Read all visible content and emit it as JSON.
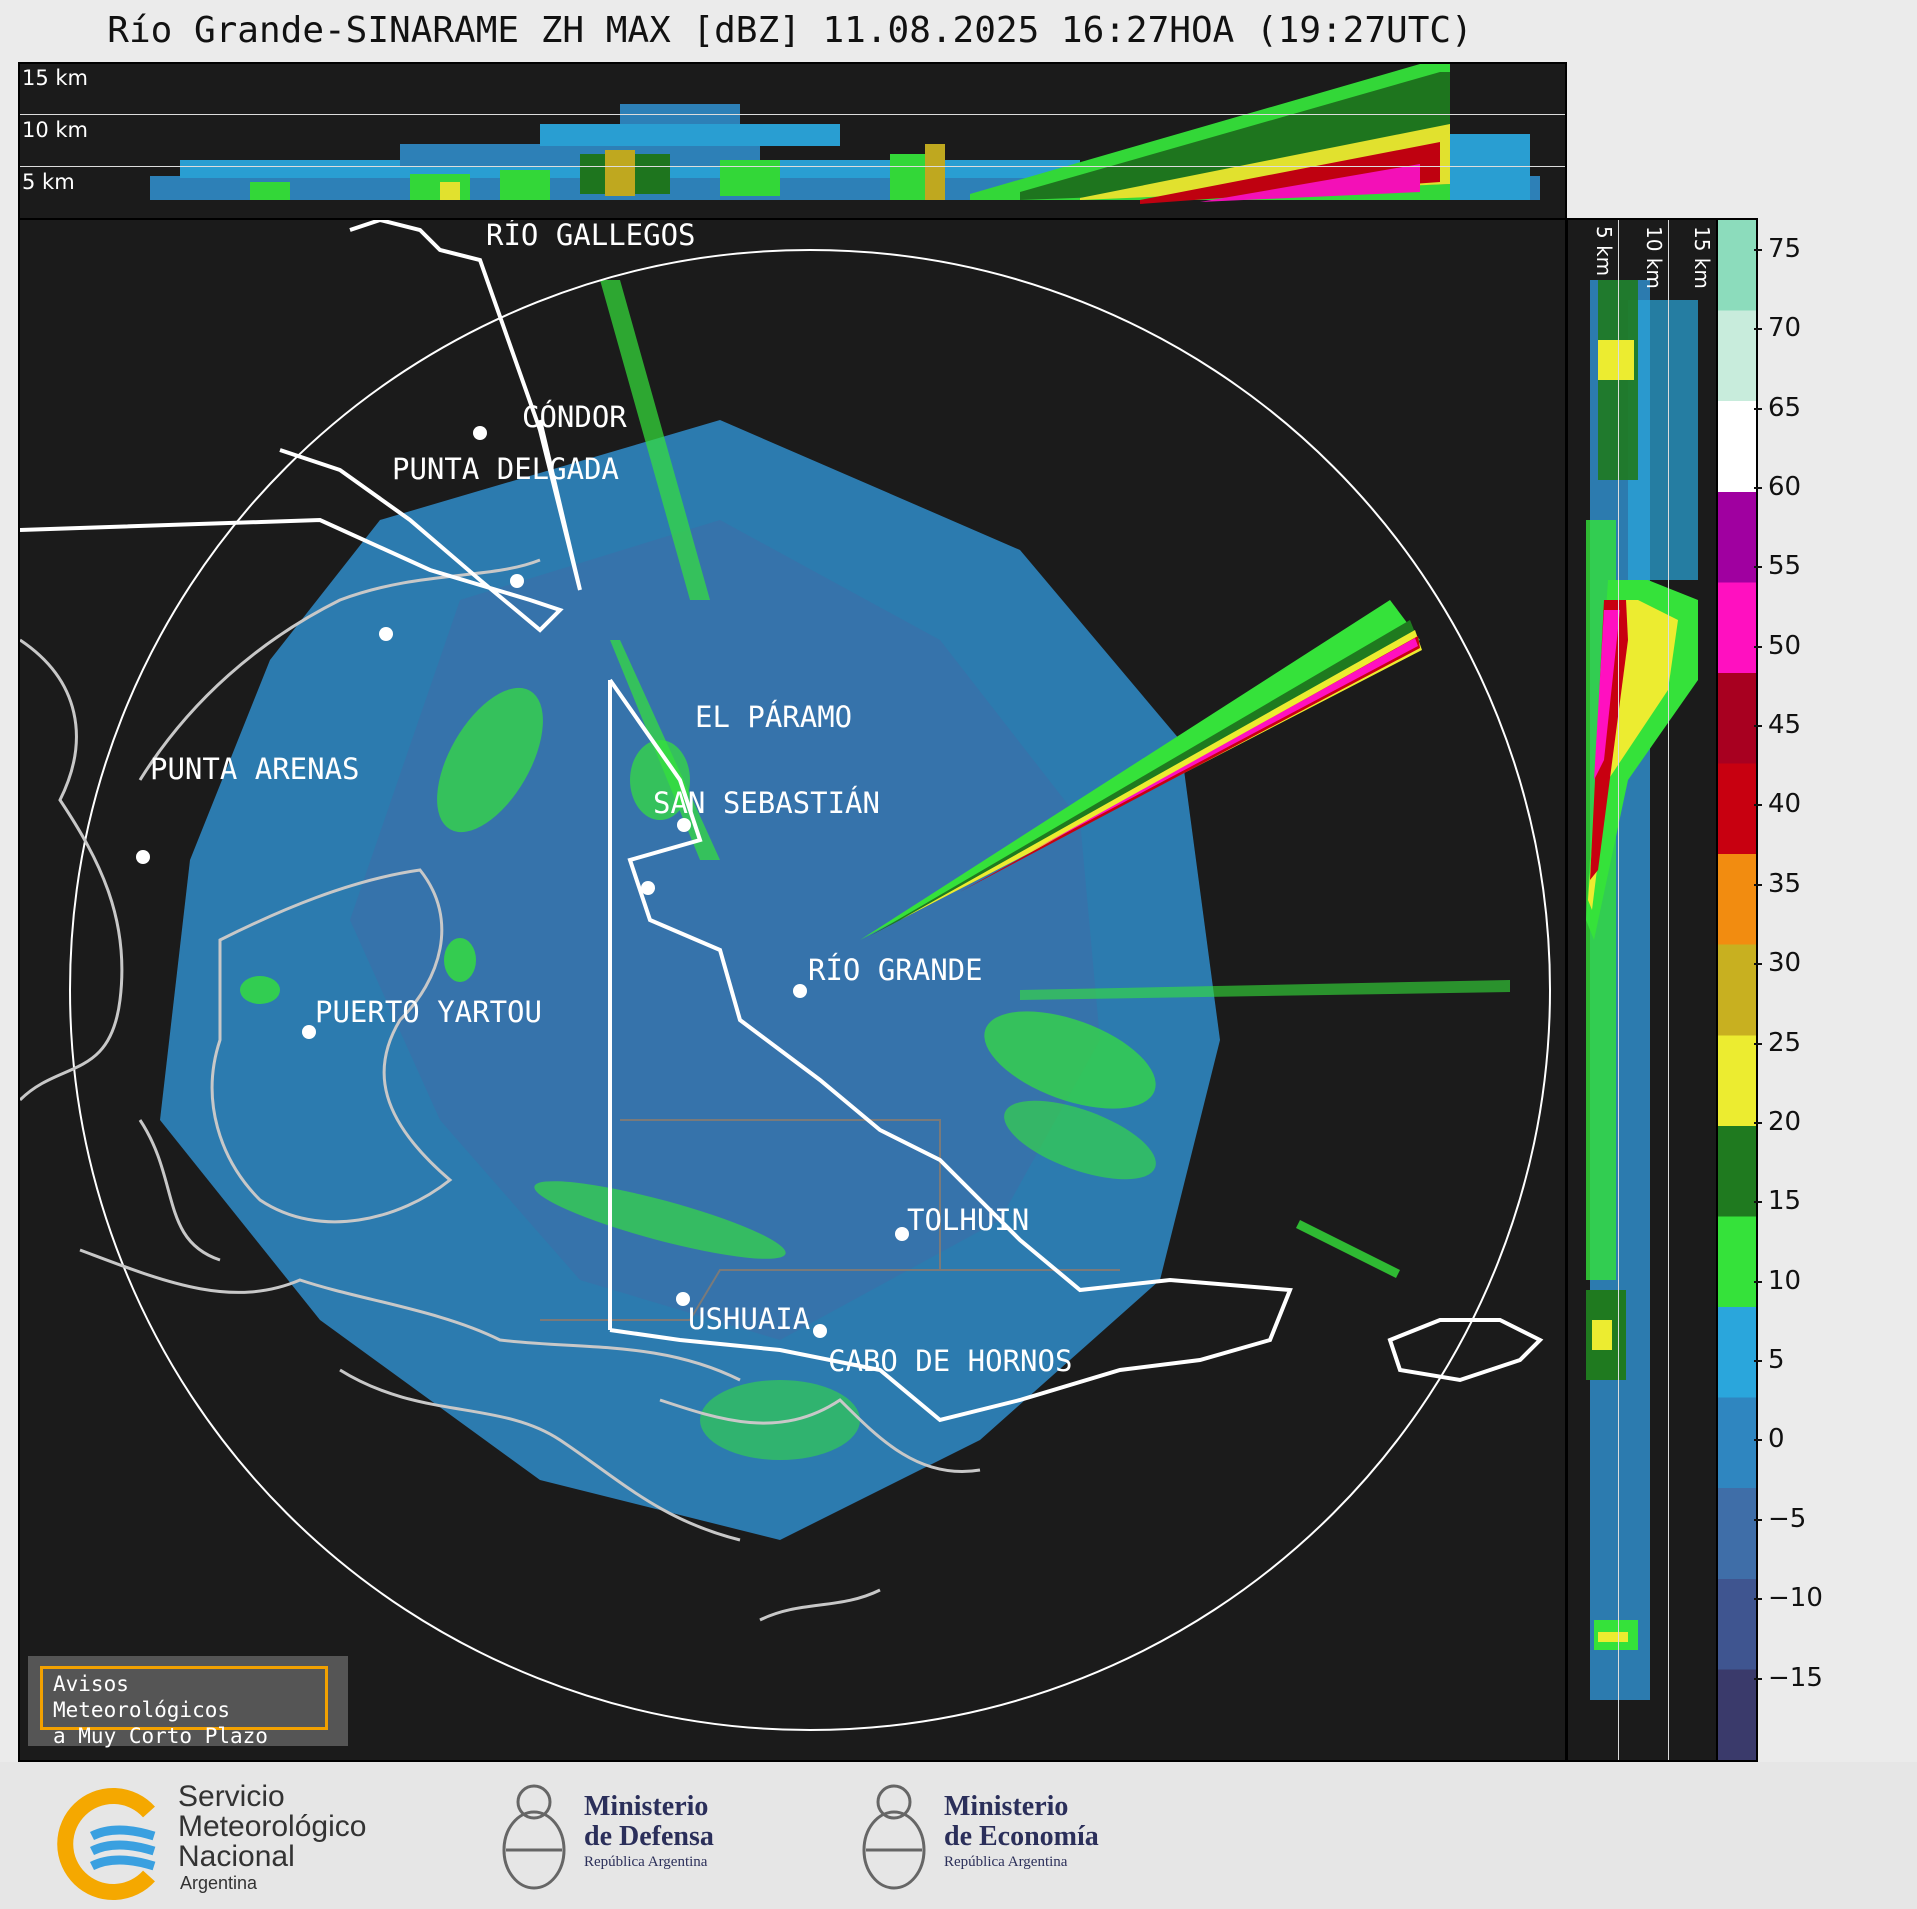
{
  "title": "Río Grande-SINARAME ZH MAX [dBZ] 11.08.2025 16:27HOA (19:27UTC)",
  "top_cross_section": {
    "height_labels": [
      "15 km",
      "10 km",
      "5 km"
    ]
  },
  "side_cross_section": {
    "height_labels": [
      "5 km",
      "10 km",
      "15 km"
    ]
  },
  "map": {
    "cities": [
      {
        "name": "RÍO GALLEGOS"
      },
      {
        "name": "CÓNDOR"
      },
      {
        "name": "PUNTA DELGADA"
      },
      {
        "name": "EL PÁRAMO"
      },
      {
        "name": "PUNTA ARENAS"
      },
      {
        "name": "SAN SEBASTIÁN"
      },
      {
        "name": "RÍO GRANDE"
      },
      {
        "name": "PUERTO YARTOU"
      },
      {
        "name": "TOLHUIN"
      },
      {
        "name": "USHUAIA"
      },
      {
        "name": "CABO DE HORNOS"
      }
    ]
  },
  "colorbar": {
    "unit": "dBZ",
    "ticks": [
      "75",
      "70",
      "65",
      "60",
      "55",
      "50",
      "45",
      "40",
      "35",
      "30",
      "25",
      "20",
      "15",
      "10",
      "5",
      "0",
      "−5",
      "−10",
      "−15"
    ],
    "range": [
      -20,
      77
    ],
    "colors": [
      "#3a3a6b",
      "#3f5590",
      "#3f6ea8",
      "#2f86c0",
      "#2aa6dc",
      "#35e23a",
      "#1f7a1f",
      "#ecec30",
      "#c8b020",
      "#f28c10",
      "#c80010",
      "#a80020",
      "#ff10c0",
      "#a000a0",
      "#ffffff",
      "#c8ecdc",
      "#8cdcbc"
    ]
  },
  "notice": {
    "line1": "Avisos Meteorológicos",
    "line2": "a Muy Corto Plazo"
  },
  "logos": {
    "smn": {
      "line1": "Servicio",
      "line2": "Meteorológico",
      "line3": "Nacional",
      "line4": "Argentina"
    },
    "defensa": {
      "line1": "Ministerio",
      "line2": "de Defensa",
      "line3": "República Argentina"
    },
    "economia": {
      "line1": "Ministerio",
      "line2": "de Economía",
      "line3": "República Argentina"
    }
  }
}
